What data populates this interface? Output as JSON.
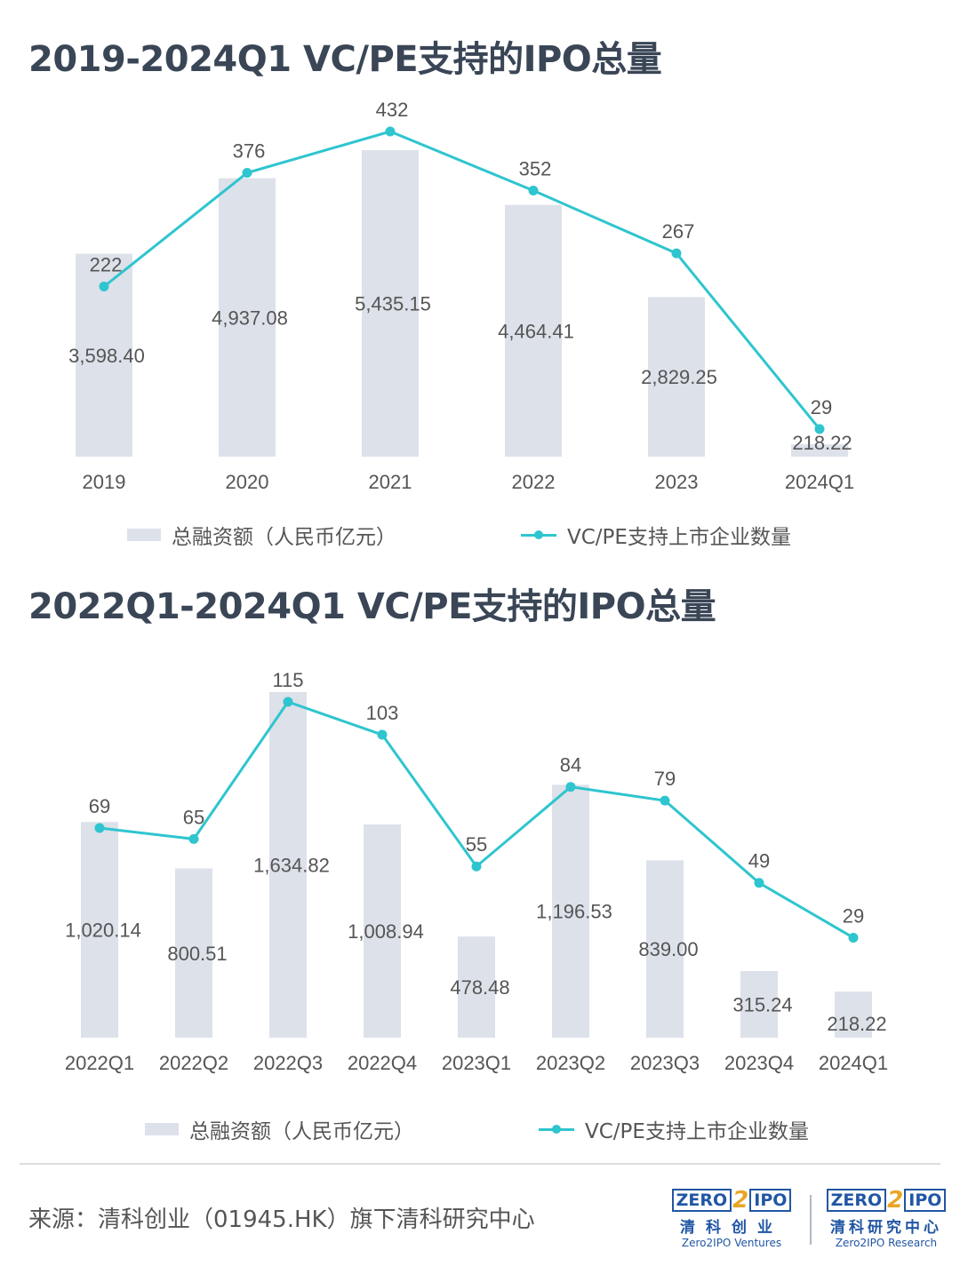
{
  "chart_data": [
    {
      "type": "bar+line",
      "title": "2019-2024Q1 VC/PE支持的IPO总量",
      "categories": [
        "2019",
        "2020",
        "2021",
        "2022",
        "2023",
        "2024Q1"
      ],
      "series": [
        {
          "name": "总融资额（人民币亿元）",
          "type": "bar",
          "values": [
            3598.4,
            4937.08,
            5435.15,
            4464.41,
            2829.25,
            218.22
          ],
          "labels": [
            "3,598.40",
            "4,937.08",
            "5,435.15",
            "4,464.41",
            "2,829.25",
            "218.22"
          ],
          "color": "#dde1ea"
        },
        {
          "name": "VC/PE支持上市企业数量",
          "type": "line",
          "values": [
            222,
            376,
            432,
            352,
            267,
            29
          ],
          "labels": [
            "222",
            "376",
            "432",
            "352",
            "267",
            "29"
          ],
          "color": "#2ec5cf"
        }
      ],
      "legend": "bottom",
      "grid": false
    },
    {
      "type": "bar+line",
      "title": "2022Q1-2024Q1 VC/PE支持的IPO总量",
      "categories": [
        "2022Q1",
        "2022Q2",
        "2022Q3",
        "2022Q4",
        "2023Q1",
        "2023Q2",
        "2023Q3",
        "2023Q4",
        "2024Q1"
      ],
      "series": [
        {
          "name": "总融资额（人民币亿元）",
          "type": "bar",
          "values": [
            1020.14,
            800.51,
            1634.82,
            1008.94,
            478.48,
            1196.53,
            839.0,
            315.24,
            218.22
          ],
          "labels": [
            "1,020.14",
            "800.51",
            "1,634.82",
            "1,008.94",
            "478.48",
            "1,196.53",
            "839.00",
            "315.24",
            "218.22"
          ],
          "color": "#dde1ea"
        },
        {
          "name": "VC/PE支持上市企业数量",
          "type": "line",
          "values": [
            69,
            65,
            115,
            103,
            55,
            84,
            79,
            49,
            29
          ],
          "labels": [
            "69",
            "65",
            "115",
            "103",
            "55",
            "84",
            "79",
            "49",
            "29"
          ],
          "color": "#2ec5cf"
        }
      ],
      "legend": "bottom",
      "grid": false
    }
  ],
  "footer": {
    "source": "来源：清科创业（01945.HK）旗下清科研究中心",
    "logo_ventures": {
      "mark_left": "ZERO",
      "mark_two": "2",
      "mark_right": "IPO",
      "cn": "清科创业",
      "en": "Zero2IPO Ventures"
    },
    "logo_research": {
      "mark_left": "ZERO",
      "mark_two": "2",
      "mark_right": "IPO",
      "cn": "清科研究中心",
      "en": "Zero2IPO Research"
    }
  }
}
